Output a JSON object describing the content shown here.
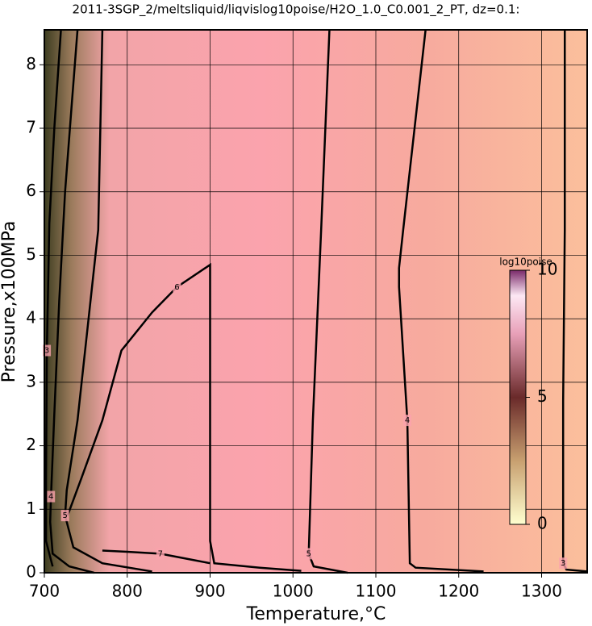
{
  "chart_data": {
    "type": "contour",
    "title": "2011-3SGP_2/meltsliquid/liqvislog10poise/H2O_1.0_C0.001_2_PT, dz=0.1:",
    "x_label": "Temperature,°C",
    "y_label": "Pressure,x100MPa",
    "xlim": [
      700,
      1355
    ],
    "ylim": [
      0,
      8.55
    ],
    "xticks": [
      700,
      800,
      900,
      1000,
      1100,
      1200,
      1300
    ],
    "yticks": [
      0,
      1,
      2,
      3,
      4,
      5,
      6,
      7,
      8
    ],
    "grid": true,
    "contours": [
      {
        "level": 3,
        "x": [
          1328,
          1328,
          1326,
          1326,
          1330,
          1355
        ],
        "y": [
          8.55,
          5.4,
          2.7,
          0.15,
          0.05,
          0.02
        ]
      },
      {
        "level": 4,
        "x": [
          1160,
          1133,
          1128,
          1128,
          1138,
          1141,
          1148,
          1230
        ],
        "y": [
          8.55,
          5.4,
          4.8,
          4.5,
          2.4,
          0.15,
          0.08,
          0.02
        ]
      },
      {
        "level": 5,
        "x": [
          1044,
          1034,
          1024,
          1019,
          1025,
          1066
        ],
        "y": [
          8.55,
          5.4,
          2.4,
          0.3,
          0.1,
          0.0
        ]
      },
      {
        "level": 6,
        "x": [
          728,
          745,
          770,
          793,
          830,
          860,
          900,
          900,
          905,
          960,
          1010
        ],
        "y": [
          0.9,
          1.5,
          2.4,
          3.5,
          4.1,
          4.5,
          4.85,
          0.5,
          0.15,
          0.08,
          0.03
        ]
      },
      {
        "level": 7,
        "x": [
          770,
          800,
          840,
          880,
          900
        ],
        "y": [
          0.35,
          0.33,
          0.3,
          0.2,
          0.15
        ]
      },
      {
        "level": 5,
        "x": [
          770,
          765,
          740,
          727,
          725,
          735,
          770,
          830
        ],
        "y": [
          8.55,
          5.4,
          2.4,
          1.3,
          0.9,
          0.4,
          0.15,
          0.02
        ]
      },
      {
        "level": 4,
        "x": [
          740,
          732,
          725,
          718,
          712,
          708,
          707,
          710,
          730,
          760
        ],
        "y": [
          8.55,
          7.2,
          6.0,
          4.3,
          2.5,
          1.2,
          0.8,
          0.3,
          0.1,
          0.0
        ]
      },
      {
        "level": 3,
        "x": [
          720,
          712,
          706,
          703,
          702,
          702,
          710
        ],
        "y": [
          8.55,
          7.0,
          5.5,
          3.5,
          1.5,
          0.5,
          0.1
        ]
      }
    ],
    "colorbar": {
      "label": "log10poise",
      "lim": [
        0,
        10
      ],
      "ticks": [
        0,
        5,
        10
      ]
    }
  }
}
